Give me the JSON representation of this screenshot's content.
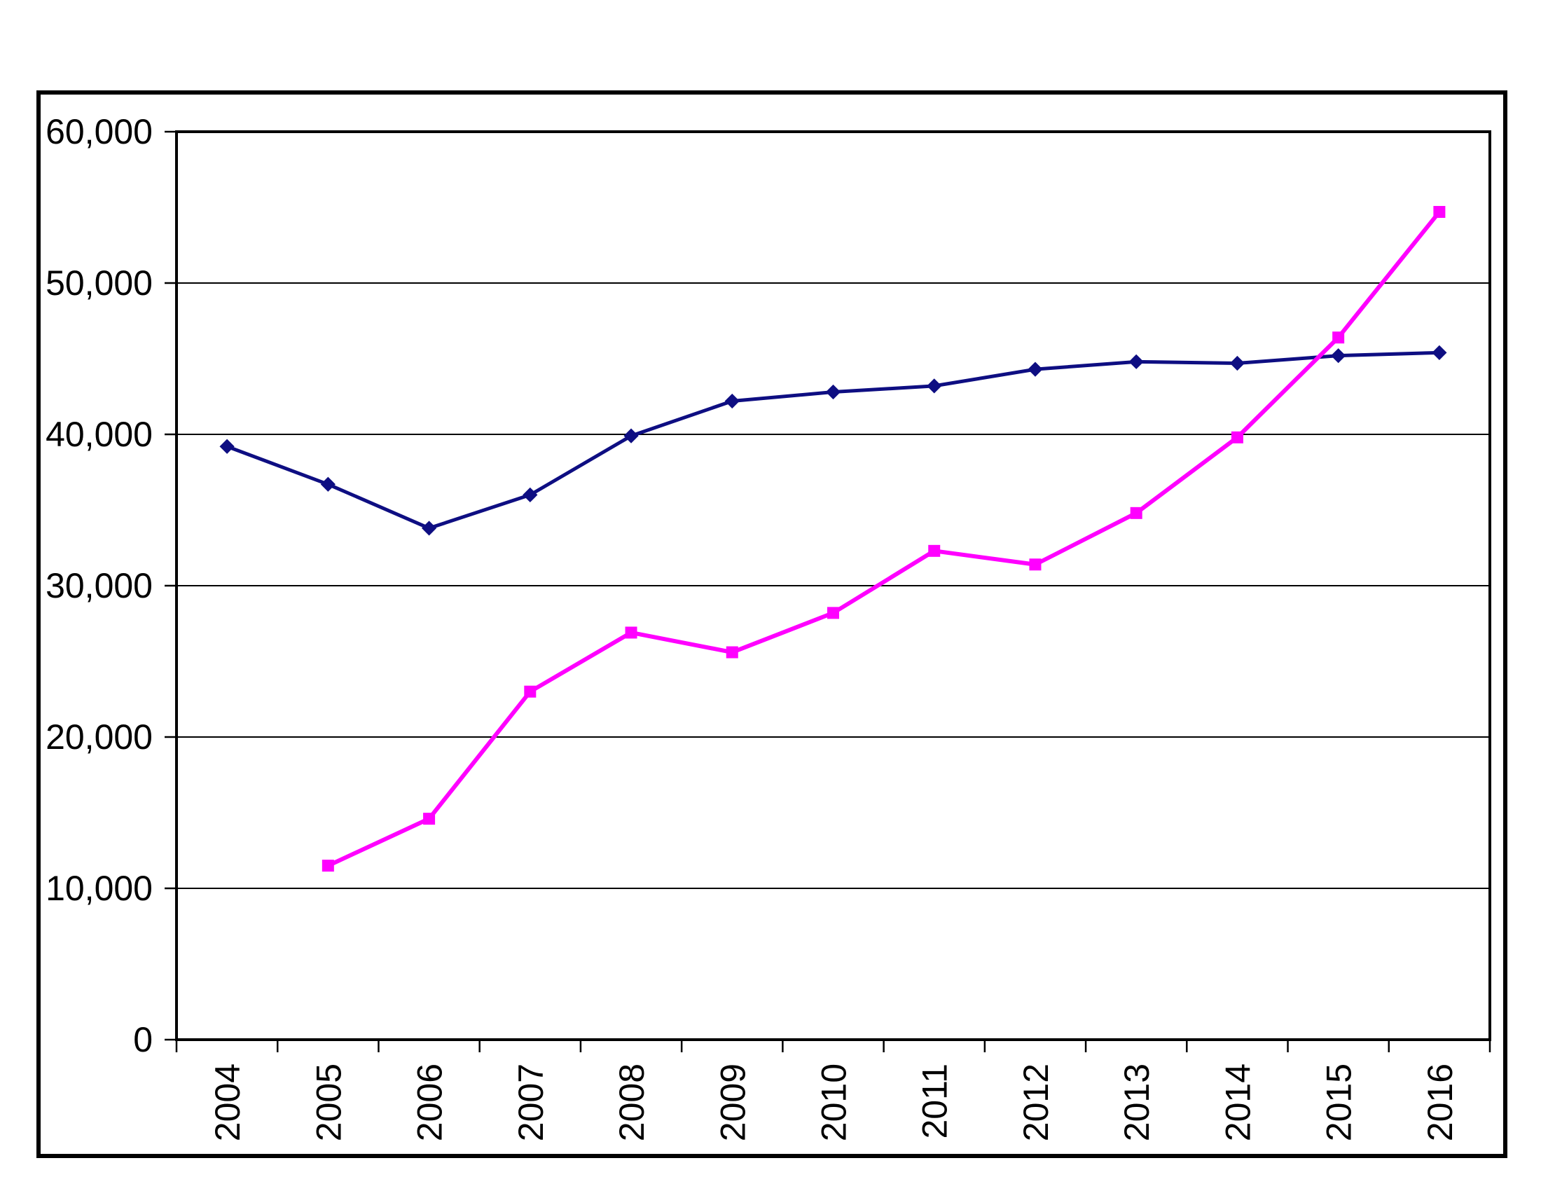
{
  "chart_data": {
    "type": "line",
    "title": "",
    "xlabel": "",
    "ylabel": "",
    "legend": "none",
    "grid": "horizontal-major",
    "background": "#FFFFFF",
    "axis_color": "#000000",
    "ylim": [
      0,
      60000
    ],
    "ytick_step": 10000,
    "ytick_labels": [
      "0",
      "10,000",
      "20,000",
      "30,000",
      "40,000",
      "50,000",
      "60,000"
    ],
    "categories": [
      "2004",
      "2005",
      "2006",
      "2007",
      "2008",
      "2009",
      "2010",
      "2011",
      "2012",
      "2013",
      "2014",
      "2015",
      "2016"
    ],
    "series": [
      {
        "name": "dark-blue-diamond-series",
        "color": "#0E0E82",
        "marker": "diamond",
        "line_width": 5,
        "values": [
          39200,
          36700,
          33800,
          36000,
          39900,
          42200,
          42800,
          43200,
          44300,
          44800,
          44700,
          45200,
          45400
        ]
      },
      {
        "name": "magenta-square-series",
        "color": "#FF00FF",
        "marker": "square",
        "line_width": 6,
        "values": [
          null,
          11500,
          14600,
          23000,
          26900,
          25600,
          28200,
          32300,
          31400,
          34800,
          39800,
          46400,
          54700
        ]
      }
    ]
  }
}
